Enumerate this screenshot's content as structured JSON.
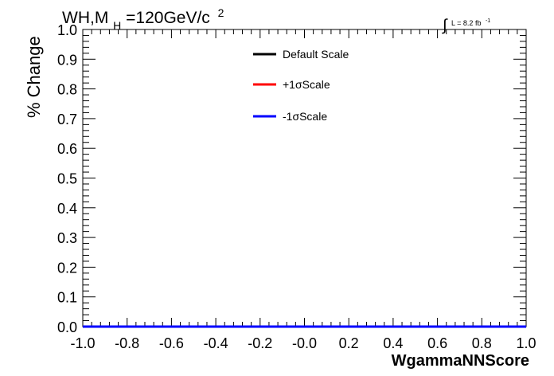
{
  "chart_data": {
    "type": "line",
    "title": {
      "main": "WH,M",
      "sub": "H",
      "rest": "=120GeV/c",
      "sup": "2"
    },
    "lumi": {
      "integral": "∫",
      "text": "L = 8.2 fb",
      "sup": "-1"
    },
    "xlabel": "WgammaNNScore",
    "ylabel": "% Change",
    "xlim": [
      -1.0,
      1.0
    ],
    "ylim": [
      0.0,
      1.0
    ],
    "xticks": [
      -1.0,
      -0.8,
      -0.6,
      -0.4,
      -0.2,
      0.0,
      0.2,
      0.4,
      0.6,
      0.8,
      1.0
    ],
    "xtick_labels": [
      "-1.0",
      "-0.8",
      "-0.6",
      "-0.4",
      "-0.2",
      "-0.0",
      "0.2",
      "0.4",
      "0.6",
      "0.8",
      "1.0"
    ],
    "yticks": [
      0.0,
      0.1,
      0.2,
      0.3,
      0.4,
      0.5,
      0.6,
      0.7,
      0.8,
      0.9,
      1.0
    ],
    "ytick_labels": [
      "0.0",
      "0.1",
      "0.2",
      "0.3",
      "0.4",
      "0.5",
      "0.6",
      "0.7",
      "0.8",
      "0.9",
      "1.0"
    ],
    "grid": false,
    "legend_position": "top-center",
    "series": [
      {
        "name": "Default Scale",
        "color": "#000000",
        "x": [
          -1.0,
          1.0
        ],
        "y": [
          0.0,
          0.0
        ]
      },
      {
        "name": "+1σScale",
        "color": "#ff0000",
        "x": [
          -1.0,
          1.0
        ],
        "y": [
          0.0,
          0.0
        ]
      },
      {
        "name": "-1σScale",
        "color": "#0000ff",
        "x": [
          -1.0,
          1.0
        ],
        "y": [
          0.0,
          0.0
        ]
      }
    ]
  }
}
